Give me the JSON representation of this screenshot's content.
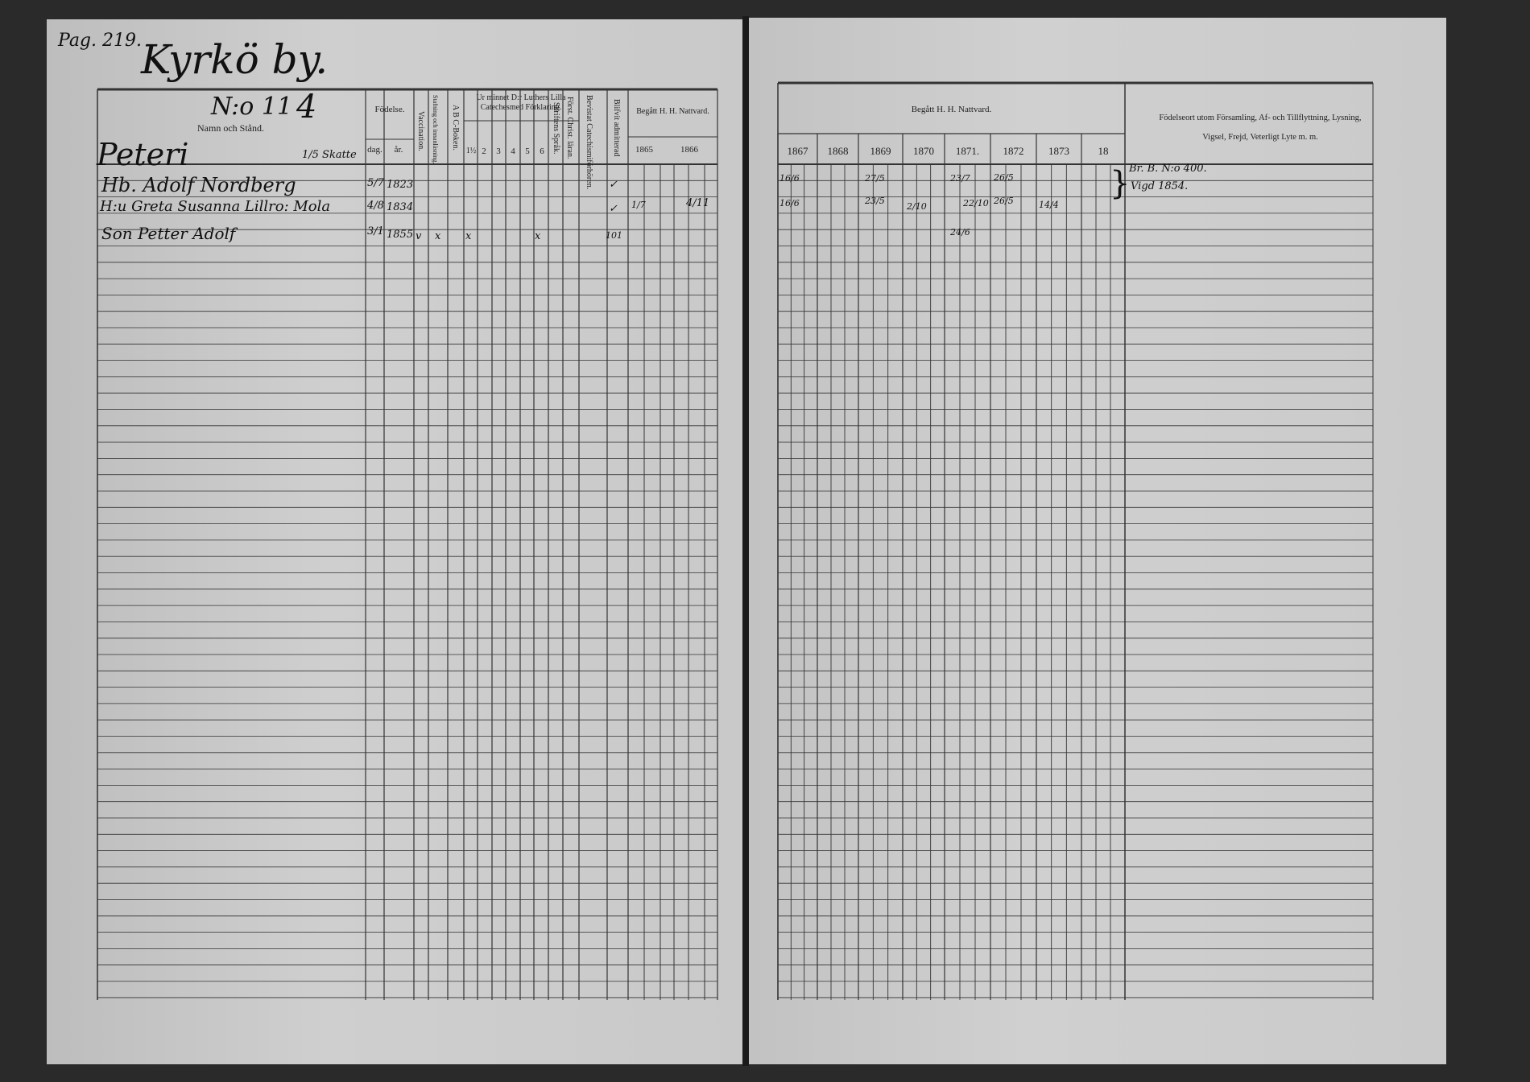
{
  "left": {
    "page_ref": "Pag. 219.",
    "village": "Kyrkö by.",
    "number": "N:o 11",
    "mark": "4",
    "farm": "Peteri",
    "share": "1/5 Skatte",
    "headers": {
      "name": "Namn och Stånd.",
      "birth": "Födelse.",
      "day": "dag.",
      "year": "år.",
      "vaccination": "Vaccination.",
      "spelling": "Stafning och innanläsning.",
      "abc": "A B C-Boken.",
      "catechism": "Ur minnet D:r Luthers Lilla Catechesmed Förklaring.",
      "catechism_parts": [
        "1½",
        "2",
        "3",
        "4",
        "5",
        "6"
      ],
      "scripture": "Skriftens Språk.",
      "christian": "Först. Christ. läran.",
      "hearings": "Bevistat Catechismiförhören.",
      "admitted": "Blifvit admitterad",
      "communion": "Begått H. H. Nattvard.",
      "years": [
        "1865",
        "1866"
      ]
    },
    "rows": [
      {
        "name": "Hb. Adolf Nordberg",
        "day": "5/7",
        "year": "1823",
        "admitted": "✓",
        "communion_1865": "",
        "communion_1866": "",
        "marks": ""
      },
      {
        "name": "H:u Greta Susanna Lillro: Mola",
        "day": "4/8",
        "year": "1834",
        "admitted": "✓",
        "communion_1865": "1/7",
        "communion_1866": "4/11",
        "marks": ""
      },
      {
        "name": "Son Petter Adolf",
        "day": "3/1",
        "year": "1855",
        "vaccination": "v",
        "spelling": "x",
        "cat1": "x",
        "cat6": "x",
        "admitted": "101"
      }
    ]
  },
  "right": {
    "headers": {
      "communion": "Begått H. H. Nattvard.",
      "years": [
        "1867",
        "1868",
        "1869",
        "1870",
        "1871.",
        "1872",
        "1873",
        "18"
      ],
      "remarks": "Födelseort utom Församling, Af- och Tillflyttning, Lysning, Vigsel, Frejd, Veterligt Lyte m. m."
    },
    "rows": [
      {
        "y1867": "16/6",
        "y1869": "27/5",
        "y1871": "23/7",
        "y1872": "26/5",
        "remark": "Br. B. N:o 400."
      },
      {
        "y1867": "16/6",
        "y1869": "23/5",
        "y1870": "2/10",
        "y1871": "22/10",
        "y1872": "26/5",
        "y1873": "14/4",
        "remark": "Vigd 1854."
      },
      {
        "y1871": "24/6"
      }
    ]
  }
}
